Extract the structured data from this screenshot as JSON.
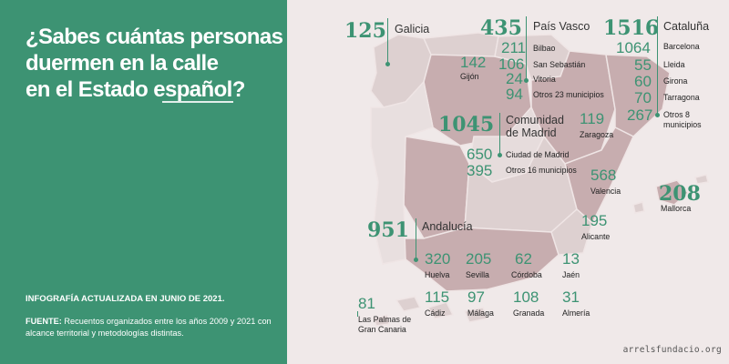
{
  "title_lines": [
    "¿Sabes cuántas personas",
    "duermen en la calle",
    "en el Estado español?"
  ],
  "updated_note": "INFOGRAFÍA ACTUALIZADA EN JUNIO DE 2021.",
  "source_label": "FUENTE:",
  "source_text": "Recuentos organizados entre los años 2009 y 2021 con alcance territorial y metodologías distintas.",
  "site_credit": "arrelsfundacio.org",
  "colors": {
    "panel": "#3d9373",
    "accent": "#3d9373",
    "map_region_light": "#ddd0d0",
    "map_region_dark": "#c7adaf",
    "background": "#f0e9e9"
  },
  "regions": {
    "galicia": {
      "total": "125",
      "name": "Galicia"
    },
    "pais_vasco": {
      "total": "435",
      "name": "País Vasco",
      "cities": [
        {
          "value": "211",
          "name": "Bilbao"
        },
        {
          "value": "106",
          "name": "San Sebastián"
        },
        {
          "value": "24",
          "name": "Vitoria"
        },
        {
          "value": "94",
          "name": "Otros 23 municipios"
        }
      ]
    },
    "cataluna": {
      "total": "1516",
      "name": "Cataluña",
      "cities": [
        {
          "value": "1064",
          "name": "Barcelona"
        },
        {
          "value": "55",
          "name": "Lleida"
        },
        {
          "value": "60",
          "name": "Girona"
        },
        {
          "value": "70",
          "name": "Tarragona"
        },
        {
          "value": "267",
          "name": "Otros 8 municipios"
        }
      ]
    },
    "madrid": {
      "total": "1045",
      "name": "Comunidad de Madrid",
      "cities": [
        {
          "value": "650",
          "name": "Ciudad de Madrid"
        },
        {
          "value": "395",
          "name": "Otros 16 municipios"
        }
      ]
    },
    "andalucia": {
      "total": "951",
      "name": "Andalucía",
      "cities": [
        {
          "value": "320",
          "name": "Huelva"
        },
        {
          "value": "205",
          "name": "Sevilla"
        },
        {
          "value": "62",
          "name": "Córdoba"
        },
        {
          "value": "13",
          "name": "Jaén"
        },
        {
          "value": "115",
          "name": "Cádiz"
        },
        {
          "value": "97",
          "name": "Málaga"
        },
        {
          "value": "108",
          "name": "Granada"
        },
        {
          "value": "31",
          "name": "Almería"
        }
      ]
    },
    "mallorca": {
      "total": "208",
      "name": "Mallorca"
    }
  },
  "other_cities": [
    {
      "value": "142",
      "name": "Gijón"
    },
    {
      "value": "119",
      "name": "Zaragoza"
    },
    {
      "value": "568",
      "name": "Valencia"
    },
    {
      "value": "195",
      "name": "Alicante"
    },
    {
      "value": "81",
      "name": "Las Palmas de Gran Canaria"
    }
  ]
}
